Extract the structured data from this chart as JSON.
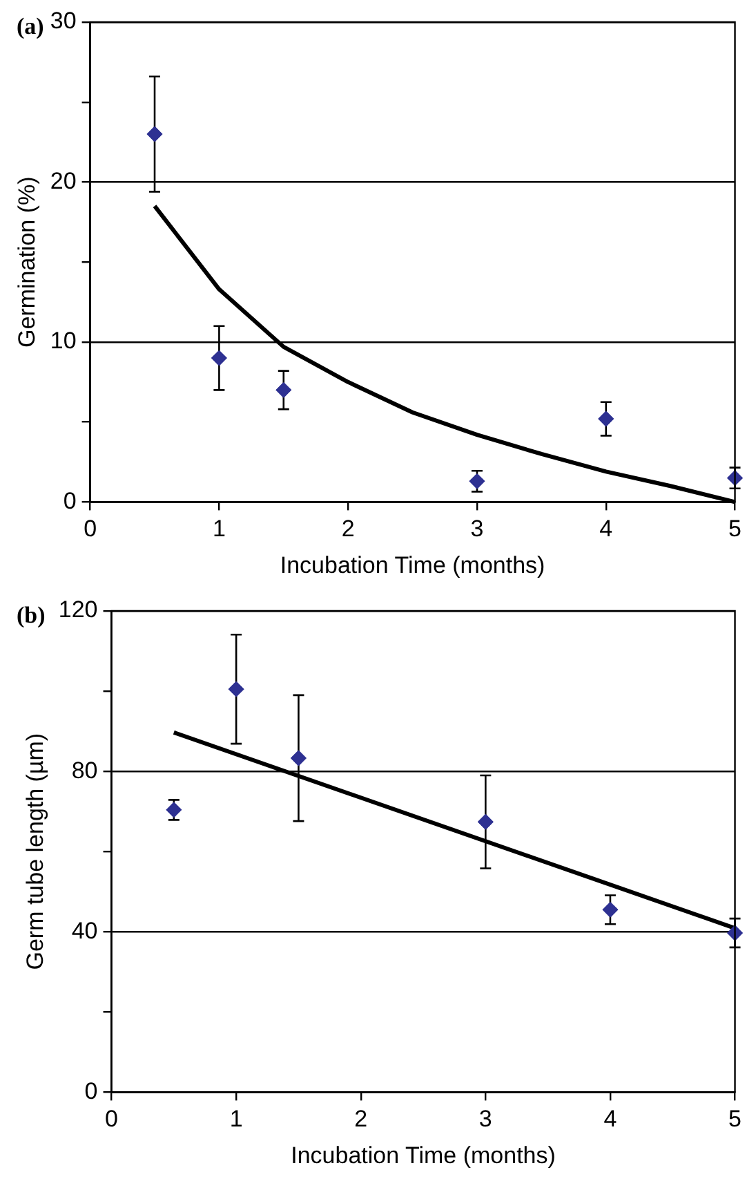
{
  "chart_data": [
    {
      "type": "scatter",
      "title": "(a)",
      "xlabel": "Incubation Time (months)",
      "ylabel": "Germination (%)",
      "xlim": [
        0,
        5
      ],
      "ylim": [
        0,
        30
      ],
      "xticks": [
        0,
        1,
        2,
        3,
        4,
        5
      ],
      "yticks": [
        0,
        {
          "value": 5,
          "label": null
        },
        10,
        {
          "value": 15,
          "label": null
        },
        20,
        {
          "value": 25,
          "label": null
        },
        30
      ],
      "grid": "y",
      "marker": "diamond",
      "series": [
        {
          "color": "#2e3192",
          "x": [
            0.5,
            1,
            1.5,
            3,
            4,
            5
          ],
          "values": [
            23,
            9,
            7,
            1.3,
            5.2,
            1.5
          ],
          "errors": [
            3.6,
            2,
            1.2,
            0.65,
            1.05,
            0.65
          ]
        },
        {
          "type": "line",
          "color": "#000000",
          "marker": "none",
          "x": [
            0.5,
            1,
            1.5,
            2,
            2.5,
            3,
            3.5,
            4,
            4.5,
            5
          ],
          "values": [
            18.5,
            13.3,
            9.7,
            7.5,
            5.6,
            4.2,
            3,
            1.9,
            1,
            0
          ]
        }
      ]
    },
    {
      "type": "scatter",
      "title": "(b)",
      "xlabel": "Incubation Time (months)",
      "ylabel": "Germ tube length (µm)",
      "xlim": [
        0,
        5
      ],
      "ylim": [
        0,
        120
      ],
      "xticks": [
        0,
        1,
        2,
        3,
        4,
        5
      ],
      "yticks": [
        0,
        {
          "value": 20,
          "label": null
        },
        40,
        {
          "value": 60,
          "label": null
        },
        80,
        {
          "value": 100,
          "label": null
        },
        120
      ],
      "grid": "y",
      "marker": "diamond",
      "series": [
        {
          "color": "#2e3192",
          "x": [
            0.5,
            1,
            1.5,
            3,
            4,
            5
          ],
          "values": [
            70.4,
            100.5,
            83.3,
            67.4,
            45.5,
            39.7
          ],
          "errors": [
            2.5,
            13.6,
            15.7,
            11.6,
            3.6,
            3.6
          ]
        },
        {
          "type": "line",
          "color": "#000000",
          "marker": "none",
          "x": [
            0.5,
            5
          ],
          "values": [
            89.7,
            40.9
          ]
        }
      ]
    }
  ]
}
